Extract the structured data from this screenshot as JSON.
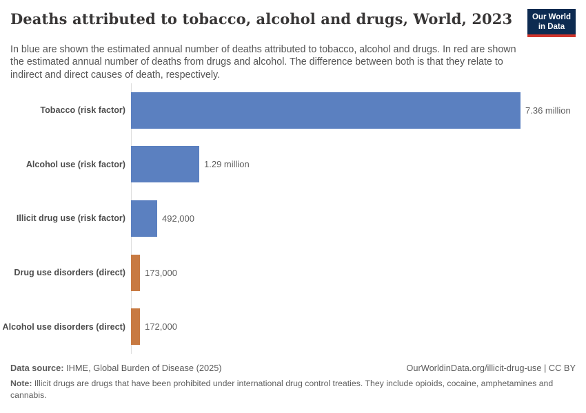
{
  "header": {
    "title": "Deaths attributed to tobacco, alcohol and drugs, World, 2023",
    "subtitle": "In blue are shown the estimated annual number of deaths attributed to tobacco, alcohol and drugs. In red are shown the estimated annual number of deaths from drugs and alcohol. The difference between both is that they relate to indirect and direct causes of death, respectively.",
    "logo": {
      "line1": "Our World",
      "line2": "in Data",
      "bg_color": "#0d2b51",
      "accent_color": "#d1342b"
    }
  },
  "chart_data": {
    "type": "bar",
    "orientation": "horizontal",
    "title": "Deaths attributed to tobacco, alcohol and drugs, World, 2023",
    "categories": [
      "Tobacco (risk factor)",
      "Alcohol use (risk factor)",
      "Illicit drug use (risk factor)",
      "Drug use disorders (direct)",
      "Alcohol use disorders (direct)"
    ],
    "values": [
      7360000,
      1290000,
      492000,
      173000,
      172000
    ],
    "value_labels": [
      "7.36 million",
      "1.29 million",
      "492,000",
      "173,000",
      "172,000"
    ],
    "bar_colors": [
      "#5b80c0",
      "#5b80c0",
      "#5b80c0",
      "#c87a42",
      "#c87a42"
    ],
    "xlim": [
      0,
      7360000
    ],
    "xlabel": "",
    "ylabel": "",
    "grid": false,
    "legend": "none"
  },
  "footer": {
    "datasource_label": "Data source:",
    "datasource_value": "IHME, Global Burden of Disease (2025)",
    "attribution": "OurWorldinData.org/illicit-drug-use | CC BY",
    "note_label": "Note:",
    "note_text": "Illicit drugs are drugs that have been prohibited under international drug control treaties. They include opioids, cocaine, amphetamines and cannabis."
  }
}
